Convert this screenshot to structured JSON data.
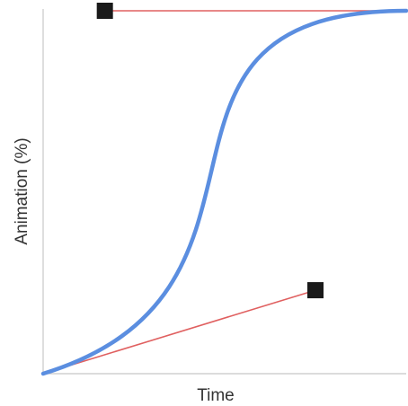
{
  "diagram": {
    "x_axis_label": "Time",
    "y_axis_label": "Animation (%)",
    "colors": {
      "curve": "#5b8ee0",
      "handle_line": "#e06060",
      "handle": "#1a1a1a",
      "axis": "#c8c8c8",
      "text": "#333333"
    }
  },
  "chart_data": {
    "type": "line",
    "xlabel": "Time",
    "ylabel": "Animation (%)",
    "control_points": [
      {
        "x": 0.0,
        "y": 0.0
      },
      {
        "x": 0.75,
        "y": 0.23
      },
      {
        "x": 0.17,
        "y": 1.0
      },
      {
        "x": 1.0,
        "y": 1.0
      }
    ]
  }
}
